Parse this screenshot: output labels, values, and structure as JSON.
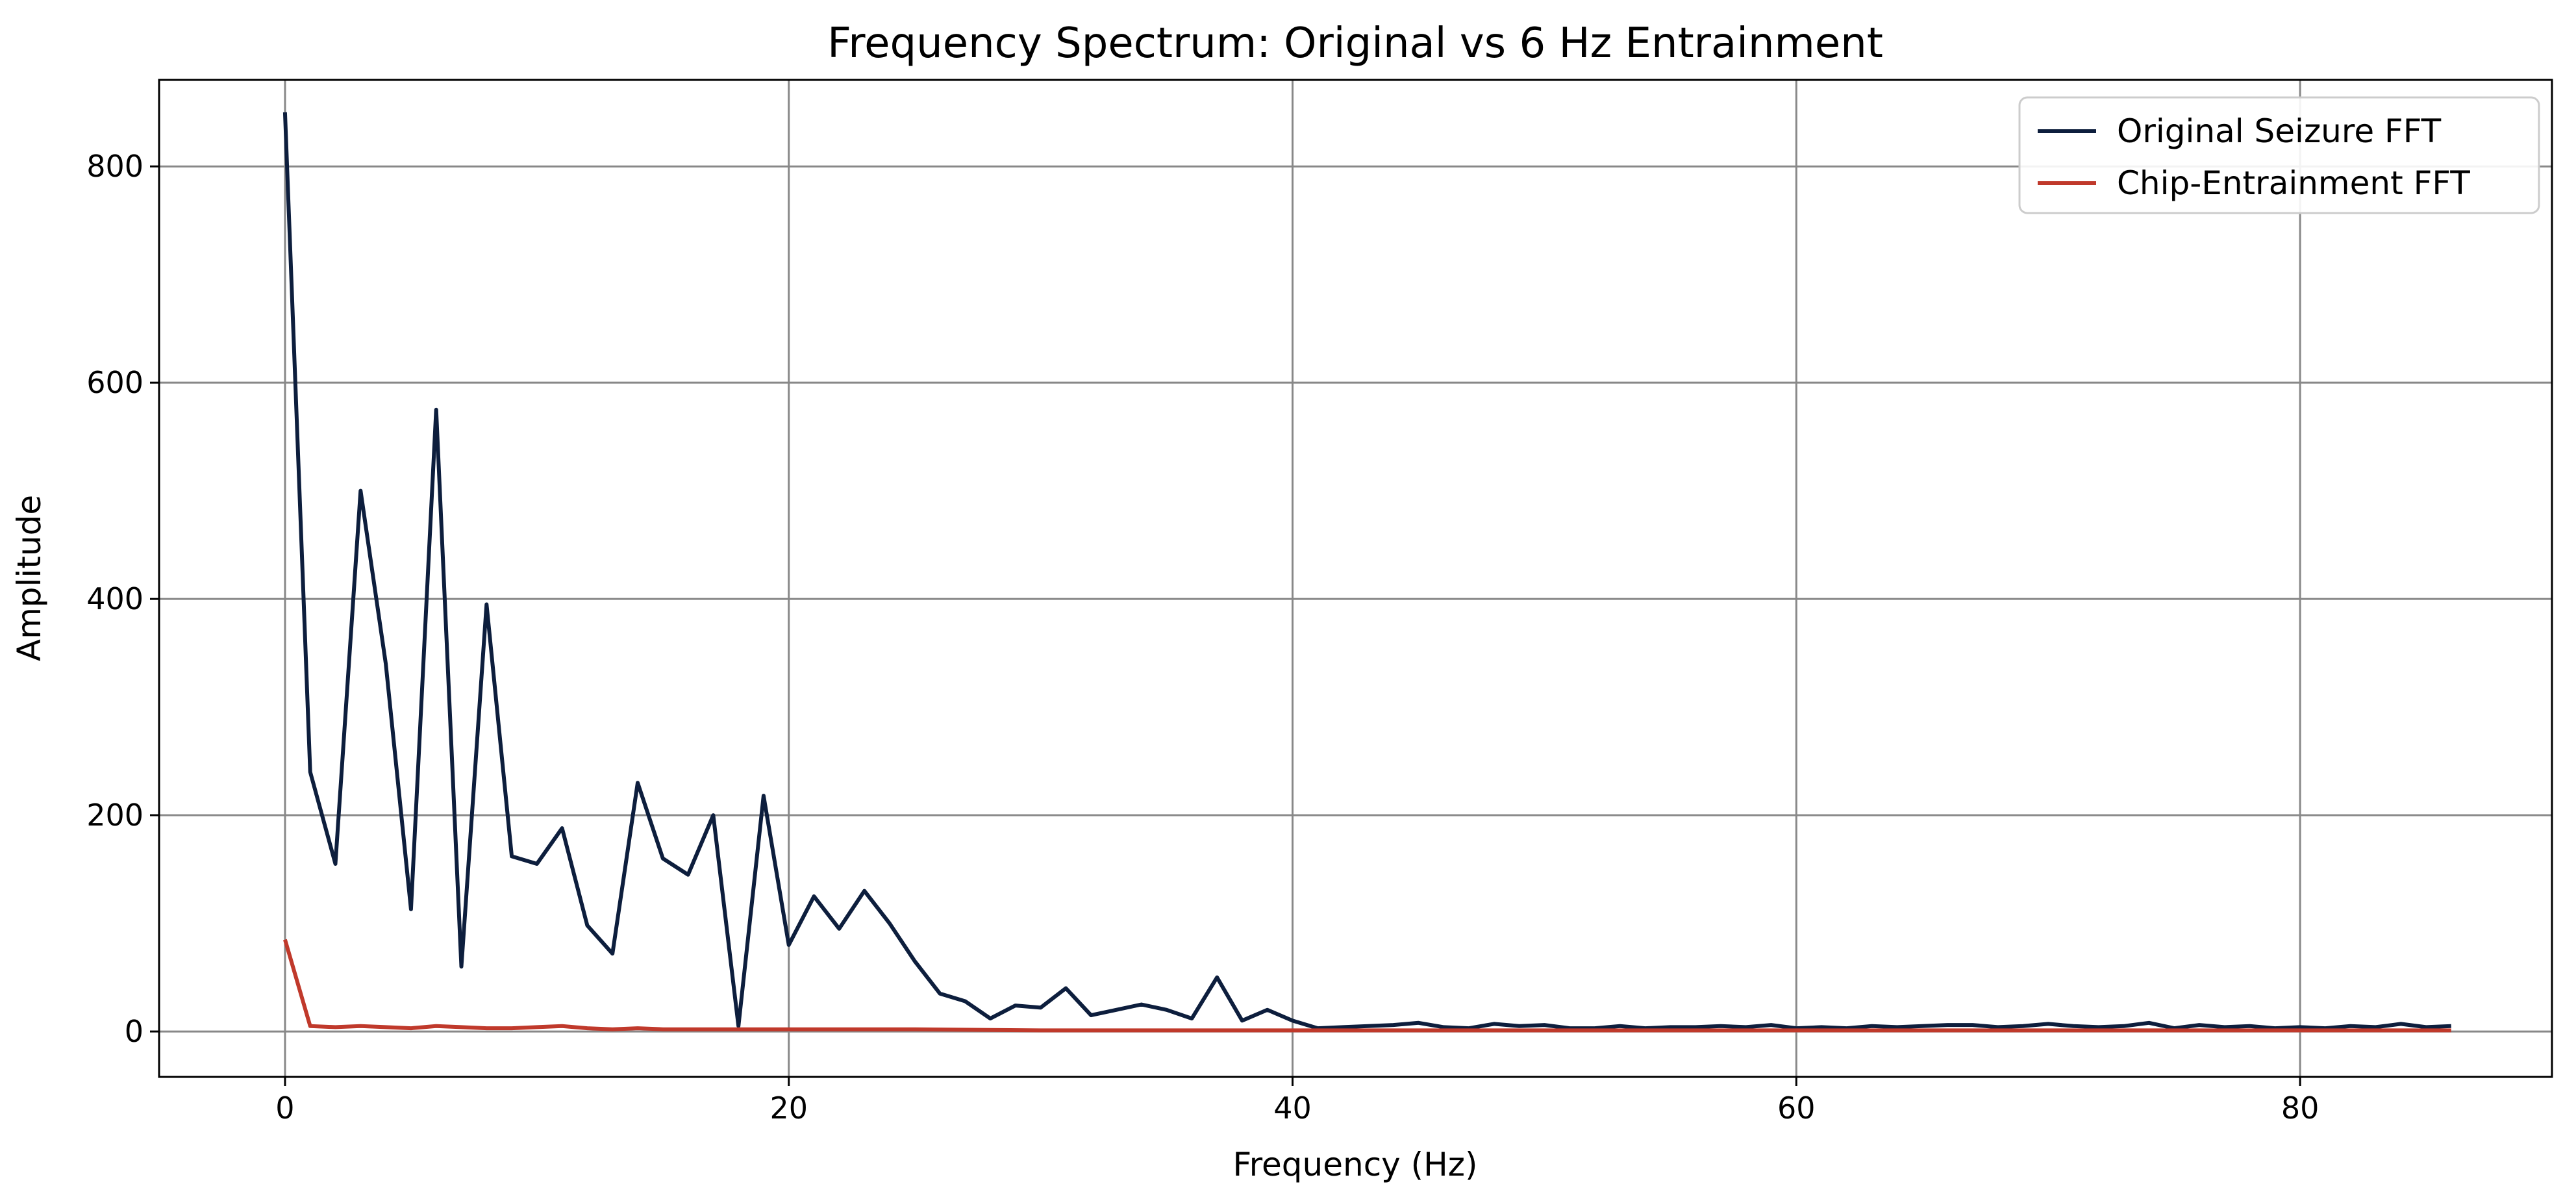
{
  "chart_data": {
    "type": "line",
    "title": "Frequency Spectrum: Original vs 6 Hz Entrainment",
    "xlabel": "Frequency (Hz)",
    "ylabel": "Amplitude",
    "xlim": [
      -5,
      90
    ],
    "ylim": [
      -42,
      880
    ],
    "x_ticks": [
      0,
      20,
      40,
      60,
      80
    ],
    "y_ticks": [
      0,
      200,
      400,
      600,
      800
    ],
    "grid": true,
    "legend_position": "top-right",
    "series": [
      {
        "name": "Original Seizure FFT",
        "color": "#0d1e3d",
        "x": [
          0,
          1,
          2,
          3,
          4,
          5,
          6,
          7,
          8,
          9,
          10,
          11,
          12,
          13,
          14,
          15,
          16,
          17,
          18,
          19,
          20,
          21,
          22,
          23,
          24,
          25,
          26,
          27,
          28,
          29,
          30,
          31,
          32,
          33,
          34,
          35,
          36,
          37,
          38,
          39,
          40,
          41,
          42,
          43,
          44,
          45,
          46,
          47,
          48,
          49,
          50,
          51,
          52,
          53,
          54,
          55,
          56,
          57,
          58,
          59,
          60,
          61,
          62,
          63,
          64,
          65,
          66,
          67,
          68,
          69,
          70,
          71,
          72,
          73,
          74,
          75,
          76,
          77,
          78,
          79,
          80,
          81,
          82,
          83,
          84,
          85,
          86
        ],
        "values": [
          850,
          240,
          155,
          500,
          340,
          113,
          575,
          60,
          395,
          162,
          155,
          188,
          98,
          72,
          230,
          160,
          145,
          200,
          5,
          218,
          80,
          125,
          95,
          130,
          100,
          65,
          35,
          28,
          12,
          24,
          22,
          40,
          15,
          20,
          25,
          20,
          12,
          50,
          10,
          20,
          10,
          3,
          4,
          5,
          6,
          8,
          4,
          3,
          7,
          5,
          6,
          3,
          3,
          5,
          3,
          4,
          4,
          5,
          4,
          6,
          3,
          4,
          3,
          5,
          4,
          5,
          6,
          6,
          4,
          5,
          7,
          5,
          4,
          5,
          8,
          3,
          6,
          4,
          5,
          3,
          4,
          3,
          5,
          4,
          7,
          4,
          5
        ]
      },
      {
        "name": "Chip-Entrainment FFT",
        "color": "#c0392b",
        "x": [
          0,
          1,
          2,
          3,
          4,
          5,
          6,
          7,
          8,
          9,
          10,
          11,
          12,
          13,
          14,
          15,
          16,
          17,
          18,
          19,
          20,
          22,
          25,
          30,
          35,
          40,
          45,
          50,
          55,
          60,
          65,
          70,
          75,
          80,
          86
        ],
        "values": [
          85,
          5,
          4,
          5,
          4,
          3,
          5,
          4,
          3,
          3,
          4,
          5,
          3,
          2,
          3,
          2,
          2,
          2,
          2,
          2,
          2,
          2,
          2,
          1,
          1,
          1,
          1,
          1,
          1,
          1,
          1,
          1,
          1,
          1,
          1
        ]
      }
    ]
  }
}
